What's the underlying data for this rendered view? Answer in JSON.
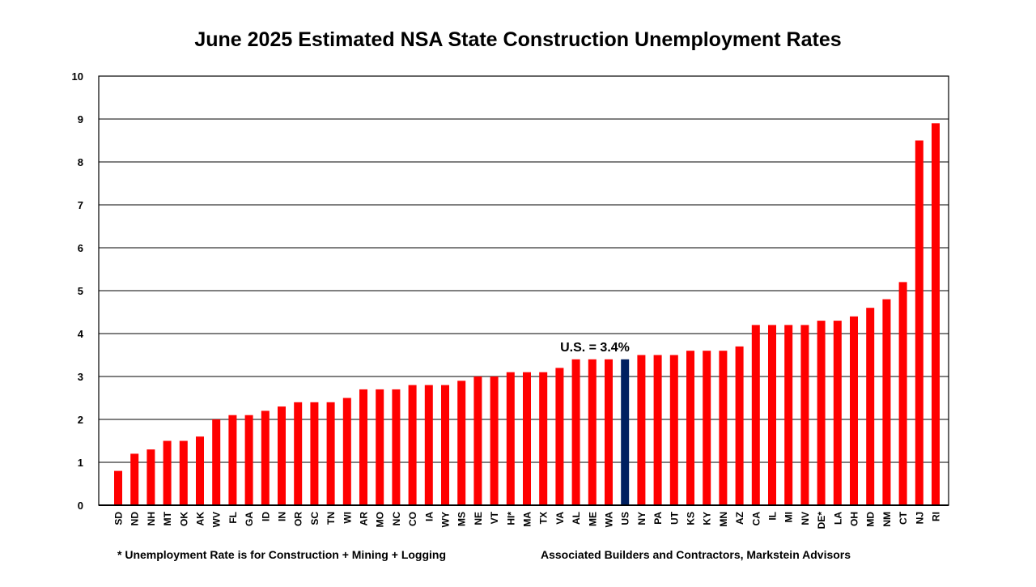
{
  "chart_data": {
    "type": "bar",
    "title": "June 2025 Estimated NSA State Construction Unemployment Rates",
    "xlabel": "",
    "ylabel": "",
    "ylim": [
      0,
      10
    ],
    "yticks": [
      0,
      1,
      2,
      3,
      4,
      5,
      6,
      7,
      8,
      9,
      10
    ],
    "grid": true,
    "legend": "none",
    "categories": [
      "SD",
      "ND",
      "NH",
      "MT",
      "OK",
      "AK",
      "WV",
      "FL",
      "GA",
      "ID",
      "IN",
      "OR",
      "SC",
      "TN",
      "WI",
      "AR",
      "MO",
      "NC",
      "CO",
      "IA",
      "WY",
      "MS",
      "NE",
      "VT",
      "HI*",
      "MA",
      "TX",
      "VA",
      "AL",
      "ME",
      "WA",
      "US",
      "NY",
      "PA",
      "UT",
      "KS",
      "KY",
      "MN",
      "AZ",
      "CA",
      "IL",
      "MI",
      "NV",
      "DE*",
      "LA",
      "OH",
      "MD",
      "NM",
      "CT",
      "NJ",
      "RI"
    ],
    "values": [
      0.8,
      1.2,
      1.3,
      1.5,
      1.5,
      1.6,
      2.0,
      2.1,
      2.1,
      2.2,
      2.3,
      2.4,
      2.4,
      2.4,
      2.5,
      2.7,
      2.7,
      2.7,
      2.8,
      2.8,
      2.8,
      2.9,
      3.0,
      3.0,
      3.1,
      3.1,
      3.1,
      3.2,
      3.4,
      3.4,
      3.4,
      3.4,
      3.5,
      3.5,
      3.5,
      3.6,
      3.6,
      3.6,
      3.7,
      4.2,
      4.2,
      4.2,
      4.2,
      4.3,
      4.3,
      4.4,
      4.6,
      4.8,
      5.2,
      8.5,
      8.9
    ],
    "highlight_category": "US",
    "colors": {
      "bar": "#ff0000",
      "highlight": "#002060"
    },
    "annotation": "U.S. = 3.4%",
    "footnote_left": "* Unemployment Rate is for Construction + Mining + Logging",
    "footnote_right": "Associated Builders and Contractors, Markstein Advisors"
  }
}
